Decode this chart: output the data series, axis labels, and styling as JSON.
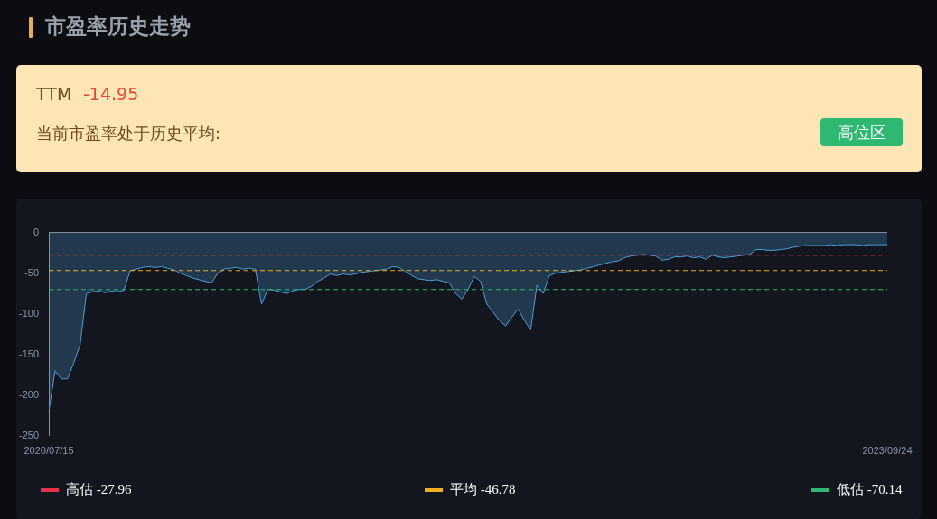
{
  "chart_data": [
    {
      "type": "other",
      "title": "市盈率历史走势",
      "annotations": [
        "TTM",
        "-14.95",
        "当前市盈率处于历史平均:",
        "高位区"
      ]
    },
    {
      "type": "area",
      "categories": [
        "2020/07/15",
        null,
        null,
        null,
        null,
        null,
        null,
        null,
        null,
        null,
        null,
        null,
        null,
        null,
        null,
        null,
        null,
        null,
        null,
        null,
        null,
        null,
        null,
        null,
        null,
        null,
        null,
        null,
        null,
        null,
        null,
        null,
        null,
        null,
        null,
        null,
        null,
        null,
        null,
        null,
        null,
        null,
        null,
        null,
        null,
        null,
        null,
        null,
        null,
        null,
        null,
        null,
        null,
        null,
        null,
        null,
        null,
        null,
        null,
        null,
        null,
        null,
        null,
        null,
        null,
        null,
        null,
        null,
        null,
        null,
        null,
        null,
        null,
        null,
        null,
        null,
        null,
        null,
        null,
        null,
        null,
        null,
        null,
        null,
        null,
        null,
        null,
        null,
        null,
        null,
        null,
        null,
        null,
        null,
        null,
        null,
        null,
        null,
        null,
        null,
        null,
        null,
        null,
        null,
        null,
        null,
        null,
        null,
        null,
        null,
        null,
        null,
        null,
        null,
        null,
        null,
        null,
        null,
        null,
        null,
        null,
        null,
        null,
        null,
        null,
        null,
        null,
        null,
        null,
        null,
        null,
        null,
        null,
        null,
        "2023/09/24"
      ],
      "series": [
        {
          "color": "#4a9fdc",
          "values": [
            -220,
            -170,
            -180,
            -180,
            -160,
            -138,
            -75,
            -73,
            -72,
            -74,
            -72,
            -73,
            -71,
            -47,
            -45,
            -43,
            -42,
            -43,
            -42,
            -44,
            -46,
            -50,
            -53,
            -56,
            -58,
            -60,
            -62,
            -50,
            -45,
            -44,
            -43,
            -45,
            -44,
            -45,
            -88,
            -70,
            -71,
            -73,
            -75,
            -72,
            -70,
            -70,
            -66,
            -60,
            -56,
            -51,
            -53,
            -51,
            -52,
            -51,
            -49,
            -48,
            -47,
            -46,
            -45,
            -42,
            -43,
            -48,
            -53,
            -57,
            -58,
            -59,
            -58,
            -60,
            -62,
            -75,
            -82,
            -70,
            -54,
            -60,
            -88,
            -98,
            -108,
            -115,
            -104,
            -94,
            -108,
            -120,
            -65,
            -75,
            -53,
            -50,
            -49,
            -48,
            -47,
            -46,
            -44,
            -42,
            -40,
            -38,
            -36,
            -35,
            -31,
            -29,
            -28,
            -27,
            -28,
            -29,
            -34,
            -33,
            -30,
            -30,
            -29,
            -31,
            -30,
            -33,
            -28,
            -30,
            -31,
            -30,
            -29,
            -28,
            -27,
            -21,
            -21,
            -22,
            -22,
            -21,
            -20,
            -18,
            -17,
            -16,
            -16,
            -16,
            -16,
            -15,
            -16,
            -15,
            -15,
            -15,
            -16,
            -15,
            -15,
            -15,
            -15
          ]
        }
      ],
      "legend": "bottom",
      "ylim": [
        -250,
        0
      ],
      "yticks": [
        0,
        -50,
        -100,
        -150,
        -200,
        -250
      ],
      "ref_lines": [
        {
          "axis": "y",
          "value": -27.96,
          "label": "高估 -27.96",
          "color": "#e8304a",
          "line_style": "dashed"
        },
        {
          "axis": "y",
          "value": -46.78,
          "label": "平均 -46.78",
          "color": "#f0b020",
          "line_style": "dashed"
        },
        {
          "axis": "y",
          "value": -70.14,
          "label": "低估 -70.14",
          "color": "#2eb872",
          "line_style": "dashed"
        }
      ]
    }
  ]
}
